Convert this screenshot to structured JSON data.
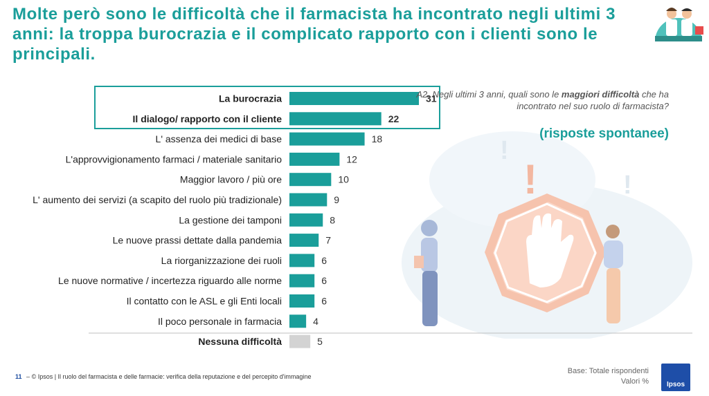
{
  "title": "Molte però sono le difficoltà che il farmacista ha incontrato negli ultimi 3 anni: la troppa burocrazia e il complicato rapporto con i clienti sono le principali.",
  "question": {
    "prefix": "A2. Negli ultimi 3 anni, quali sono le ",
    "bold": "maggiori difficoltà",
    "suffix": " che ha incontrato nel suo ruolo di farmacista?"
  },
  "note": "(risposte spontanee)",
  "footer": {
    "page": "11",
    "dash": "–",
    "text": "© Ipsos | Il ruolo del farmacista e delle farmacie: verifica della reputazione e del percepito d'immagine"
  },
  "base": {
    "line1": "Base: Totale rispondenti",
    "line2": "Valori %"
  },
  "logo": "Ipsos",
  "colors": {
    "accent": "#1a9e9a",
    "bar": "#1a9e9a",
    "bar_none": "#d3d3d3",
    "highlight_box": "#1a9e9a"
  },
  "chart_data": {
    "type": "bar",
    "orientation": "horizontal",
    "categories": [
      "La burocrazia",
      "Il dialogo/ rapporto con il cliente",
      "L' assenza dei medici di base",
      "L'approvvigionamento farmaci / materiale sanitario",
      "Maggior lavoro / più ore",
      "L' aumento dei servizi (a scapito del ruolo più tradizionale)",
      "La gestione  dei tamponi",
      "Le nuove prassi dettate dalla pandemia",
      "La riorganizzazione dei ruoli",
      "Le nuove normative / incertezza riguardo alle norme",
      "Il contatto con le ASL e gli Enti locali",
      "Il poco personale in farmacia",
      "Nessuna difficoltà"
    ],
    "values": [
      31,
      22,
      18,
      12,
      10,
      9,
      8,
      7,
      6,
      6,
      6,
      4,
      5
    ],
    "bold_categories": [
      "La burocrazia",
      "Il dialogo/ rapporto con il cliente",
      "Nessuna difficoltà"
    ],
    "highlighted_categories": [
      "La burocrazia",
      "Il dialogo/ rapporto con il cliente"
    ],
    "neutral_categories": [
      "Nessuna difficoltà"
    ],
    "xlim": [
      0,
      31
    ],
    "grid": false
  }
}
